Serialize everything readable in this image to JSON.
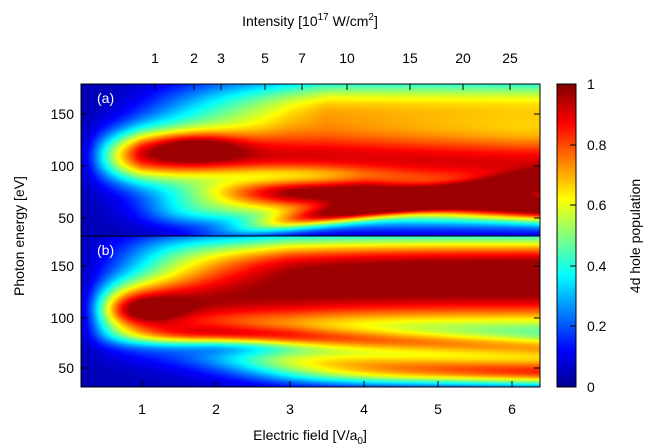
{
  "chart_data": {
    "type": "heatmap",
    "top_axis": {
      "label_prefix": "Intensity [10",
      "label_exp": "17",
      "label_mid": " W/cm",
      "label_sup2": "2",
      "label_suffix": "]",
      "ticks": [
        "1",
        "2",
        "3",
        "5",
        "7",
        "10",
        "15",
        "20",
        "25"
      ],
      "tick_values": [
        1,
        2,
        3,
        5,
        7,
        10,
        15,
        20,
        25
      ]
    },
    "x_axis": {
      "label_main": "Electric field [V/a",
      "label_sub": "0",
      "label_end": "]",
      "ticks": [
        "1",
        "2",
        "3",
        "4",
        "5",
        "6"
      ],
      "tick_values": [
        1,
        2,
        3,
        4,
        5,
        6
      ],
      "range": [
        0.2,
        6.35
      ]
    },
    "y_axis": {
      "label": "Photon energy [eV]",
      "range": [
        30,
        180
      ]
    },
    "panels": [
      {
        "tag": "(a)",
        "y_ticks": [
          "50",
          "100",
          "150"
        ],
        "y_tick_values": [
          50,
          100,
          150
        ]
      },
      {
        "tag": "(b)",
        "y_ticks": [
          "50",
          "100",
          "150"
        ],
        "y_tick_values": [
          50,
          100,
          150
        ]
      }
    ],
    "colorbar": {
      "label": "4d hole population",
      "range": [
        0,
        1
      ],
      "ticks": [
        "0",
        "0.2",
        "0.4",
        "0.6",
        "0.8",
        "1"
      ],
      "tick_values": [
        0,
        0.2,
        0.4,
        0.6,
        0.8,
        1
      ],
      "colors": [
        "#00008f",
        "#0000ff",
        "#00ffff",
        "#ffff00",
        "#ff0000",
        "#800000"
      ]
    }
  }
}
